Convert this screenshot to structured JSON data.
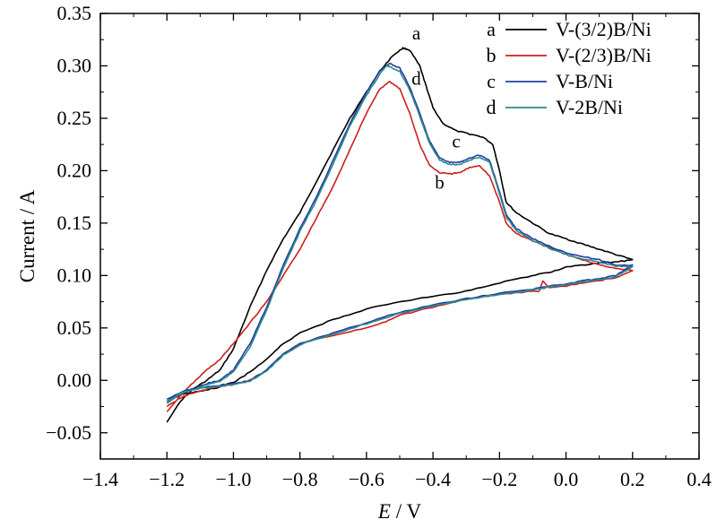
{
  "chart_data": {
    "type": "line",
    "title": "",
    "xlabel_var": "E",
    "xlabel_unit": " / V",
    "ylabel": "Current / A",
    "xlim": [
      -1.4,
      0.4
    ],
    "ylim": [
      -0.075,
      0.35
    ],
    "xticks": [
      -1.4,
      -1.2,
      -1.0,
      -0.8,
      -0.6,
      -0.4,
      -0.2,
      0.0,
      0.2,
      0.4
    ],
    "xtick_labels": [
      "−1.4",
      "−1.2",
      "−1.0",
      "−0.8",
      "−0.6",
      "−0.4",
      "−0.2",
      "0.0",
      "0.2",
      "0.4"
    ],
    "yticks": [
      -0.05,
      0.0,
      0.05,
      0.1,
      0.15,
      0.2,
      0.25,
      0.3,
      0.35
    ],
    "ytick_labels": [
      "−0.05",
      "0.00",
      "0.05",
      "0.10",
      "0.15",
      "0.20",
      "0.25",
      "0.30",
      "0.35"
    ],
    "grid": false,
    "legend_position": "top-right",
    "series": [
      {
        "letter": "a",
        "name": "V-(3/2)B/Ni",
        "color": "#000000",
        "forward": [
          [
            -1.2,
            -0.04
          ],
          [
            -1.16,
            -0.02
          ],
          [
            -1.12,
            -0.008
          ],
          [
            -1.08,
            0.0
          ],
          [
            -1.04,
            0.01
          ],
          [
            -1.0,
            0.03
          ],
          [
            -0.95,
            0.07
          ],
          [
            -0.9,
            0.105
          ],
          [
            -0.85,
            0.135
          ],
          [
            -0.8,
            0.16
          ],
          [
            -0.75,
            0.19
          ],
          [
            -0.7,
            0.22
          ],
          [
            -0.65,
            0.25
          ],
          [
            -0.6,
            0.275
          ],
          [
            -0.56,
            0.295
          ],
          [
            -0.52,
            0.31
          ],
          [
            -0.49,
            0.317
          ],
          [
            -0.47,
            0.315
          ],
          [
            -0.44,
            0.3
          ],
          [
            -0.42,
            0.28
          ],
          [
            -0.4,
            0.26
          ],
          [
            -0.37,
            0.245
          ],
          [
            -0.33,
            0.238
          ],
          [
            -0.29,
            0.235
          ],
          [
            -0.25,
            0.232
          ],
          [
            -0.22,
            0.225
          ],
          [
            -0.2,
            0.2
          ],
          [
            -0.18,
            0.17
          ],
          [
            -0.15,
            0.16
          ],
          [
            -0.1,
            0.15
          ],
          [
            -0.05,
            0.14
          ],
          [
            0.0,
            0.135
          ],
          [
            0.05,
            0.13
          ],
          [
            0.1,
            0.125
          ],
          [
            0.15,
            0.12
          ],
          [
            0.2,
            0.115
          ]
        ],
        "reverse": [
          [
            0.2,
            0.115
          ],
          [
            0.15,
            0.113
          ],
          [
            0.1,
            0.112
          ],
          [
            0.05,
            0.11
          ],
          [
            0.0,
            0.108
          ],
          [
            -0.05,
            0.103
          ],
          [
            -0.1,
            0.1
          ],
          [
            -0.2,
            0.093
          ],
          [
            -0.3,
            0.085
          ],
          [
            -0.4,
            0.08
          ],
          [
            -0.5,
            0.075
          ],
          [
            -0.6,
            0.068
          ],
          [
            -0.7,
            0.058
          ],
          [
            -0.8,
            0.045
          ],
          [
            -0.85,
            0.035
          ],
          [
            -0.9,
            0.02
          ],
          [
            -0.95,
            0.008
          ],
          [
            -1.0,
            -0.002
          ],
          [
            -1.05,
            -0.007
          ],
          [
            -1.1,
            -0.01
          ],
          [
            -1.15,
            -0.013
          ],
          [
            -1.2,
            -0.02
          ]
        ]
      },
      {
        "letter": "b",
        "name": "V-(2/3)B/Ni",
        "color": "#cc1f1f",
        "forward": [
          [
            -1.2,
            -0.03
          ],
          [
            -1.16,
            -0.015
          ],
          [
            -1.12,
            -0.002
          ],
          [
            -1.08,
            0.01
          ],
          [
            -1.04,
            0.02
          ],
          [
            -1.0,
            0.035
          ],
          [
            -0.95,
            0.055
          ],
          [
            -0.9,
            0.075
          ],
          [
            -0.85,
            0.1
          ],
          [
            -0.8,
            0.125
          ],
          [
            -0.75,
            0.155
          ],
          [
            -0.7,
            0.185
          ],
          [
            -0.65,
            0.22
          ],
          [
            -0.6,
            0.255
          ],
          [
            -0.56,
            0.278
          ],
          [
            -0.53,
            0.285
          ],
          [
            -0.5,
            0.278
          ],
          [
            -0.47,
            0.255
          ],
          [
            -0.44,
            0.225
          ],
          [
            -0.41,
            0.205
          ],
          [
            -0.38,
            0.198
          ],
          [
            -0.35,
            0.197
          ],
          [
            -0.32,
            0.198
          ],
          [
            -0.29,
            0.203
          ],
          [
            -0.26,
            0.205
          ],
          [
            -0.23,
            0.195
          ],
          [
            -0.2,
            0.17
          ],
          [
            -0.18,
            0.15
          ],
          [
            -0.15,
            0.14
          ],
          [
            -0.1,
            0.133
          ],
          [
            -0.05,
            0.127
          ],
          [
            0.0,
            0.12
          ],
          [
            0.05,
            0.115
          ],
          [
            0.1,
            0.11
          ],
          [
            0.15,
            0.107
          ],
          [
            0.2,
            0.105
          ]
        ],
        "reverse": [
          [
            0.2,
            0.105
          ],
          [
            0.15,
            0.098
          ],
          [
            0.1,
            0.095
          ],
          [
            0.05,
            0.093
          ],
          [
            0.0,
            0.09
          ],
          [
            -0.05,
            0.088
          ],
          [
            -0.07,
            0.095
          ],
          [
            -0.08,
            0.085
          ],
          [
            -0.1,
            0.085
          ],
          [
            -0.2,
            0.082
          ],
          [
            -0.3,
            0.077
          ],
          [
            -0.4,
            0.07
          ],
          [
            -0.5,
            0.062
          ],
          [
            -0.55,
            0.055
          ],
          [
            -0.6,
            0.05
          ],
          [
            -0.7,
            0.043
          ],
          [
            -0.8,
            0.035
          ],
          [
            -0.85,
            0.025
          ],
          [
            -0.9,
            0.01
          ],
          [
            -0.95,
            0.0
          ],
          [
            -1.0,
            -0.004
          ],
          [
            -1.05,
            -0.006
          ],
          [
            -1.1,
            -0.01
          ],
          [
            -1.15,
            -0.015
          ],
          [
            -1.2,
            -0.025
          ]
        ]
      },
      {
        "letter": "c",
        "name": "V-B/Ni",
        "color": "#1f3fa8",
        "forward": [
          [
            -1.2,
            -0.02
          ],
          [
            -1.16,
            -0.012
          ],
          [
            -1.12,
            -0.008
          ],
          [
            -1.08,
            -0.003
          ],
          [
            -1.04,
            0.0
          ],
          [
            -1.0,
            0.01
          ],
          [
            -0.95,
            0.035
          ],
          [
            -0.9,
            0.07
          ],
          [
            -0.85,
            0.11
          ],
          [
            -0.8,
            0.145
          ],
          [
            -0.75,
            0.175
          ],
          [
            -0.7,
            0.21
          ],
          [
            -0.65,
            0.245
          ],
          [
            -0.6,
            0.275
          ],
          [
            -0.56,
            0.295
          ],
          [
            -0.53,
            0.302
          ],
          [
            -0.5,
            0.298
          ],
          [
            -0.47,
            0.28
          ],
          [
            -0.44,
            0.255
          ],
          [
            -0.41,
            0.228
          ],
          [
            -0.38,
            0.212
          ],
          [
            -0.35,
            0.208
          ],
          [
            -0.32,
            0.208
          ],
          [
            -0.29,
            0.212
          ],
          [
            -0.26,
            0.215
          ],
          [
            -0.23,
            0.21
          ],
          [
            -0.2,
            0.18
          ],
          [
            -0.18,
            0.158
          ],
          [
            -0.15,
            0.145
          ],
          [
            -0.1,
            0.135
          ],
          [
            -0.05,
            0.128
          ],
          [
            0.0,
            0.122
          ],
          [
            0.05,
            0.118
          ],
          [
            0.1,
            0.115
          ],
          [
            0.15,
            0.11
          ],
          [
            0.2,
            0.11
          ]
        ],
        "reverse": [
          [
            0.2,
            0.11
          ],
          [
            0.15,
            0.1
          ],
          [
            0.1,
            0.097
          ],
          [
            0.05,
            0.095
          ],
          [
            0.0,
            0.092
          ],
          [
            -0.05,
            0.09
          ],
          [
            -0.1,
            0.087
          ],
          [
            -0.2,
            0.083
          ],
          [
            -0.3,
            0.078
          ],
          [
            -0.4,
            0.072
          ],
          [
            -0.5,
            0.065
          ],
          [
            -0.6,
            0.055
          ],
          [
            -0.7,
            0.045
          ],
          [
            -0.8,
            0.035
          ],
          [
            -0.85,
            0.025
          ],
          [
            -0.9,
            0.01
          ],
          [
            -0.95,
            0.0
          ],
          [
            -1.0,
            -0.003
          ],
          [
            -1.05,
            -0.005
          ],
          [
            -1.1,
            -0.007
          ],
          [
            -1.15,
            -0.01
          ],
          [
            -1.2,
            -0.018
          ]
        ]
      },
      {
        "letter": "d",
        "name": "V-2B/Ni",
        "color": "#2e8a8a",
        "forward": [
          [
            -1.2,
            -0.022
          ],
          [
            -1.16,
            -0.013
          ],
          [
            -1.12,
            -0.009
          ],
          [
            -1.08,
            -0.004
          ],
          [
            -1.04,
            -0.001
          ],
          [
            -1.0,
            0.008
          ],
          [
            -0.95,
            0.032
          ],
          [
            -0.9,
            0.067
          ],
          [
            -0.85,
            0.107
          ],
          [
            -0.8,
            0.142
          ],
          [
            -0.75,
            0.172
          ],
          [
            -0.7,
            0.207
          ],
          [
            -0.65,
            0.242
          ],
          [
            -0.6,
            0.272
          ],
          [
            -0.56,
            0.292
          ],
          [
            -0.54,
            0.3
          ],
          [
            -0.53,
            0.299
          ],
          [
            -0.5,
            0.295
          ],
          [
            -0.47,
            0.277
          ],
          [
            -0.44,
            0.252
          ],
          [
            -0.41,
            0.226
          ],
          [
            -0.38,
            0.21
          ],
          [
            -0.35,
            0.206
          ],
          [
            -0.32,
            0.206
          ],
          [
            -0.29,
            0.21
          ],
          [
            -0.26,
            0.213
          ],
          [
            -0.23,
            0.208
          ],
          [
            -0.2,
            0.178
          ],
          [
            -0.18,
            0.156
          ],
          [
            -0.15,
            0.143
          ],
          [
            -0.1,
            0.133
          ],
          [
            -0.05,
            0.126
          ],
          [
            0.0,
            0.12
          ],
          [
            0.05,
            0.116
          ],
          [
            0.1,
            0.113
          ],
          [
            0.15,
            0.109
          ],
          [
            0.2,
            0.108
          ]
        ],
        "reverse": [
          [
            0.2,
            0.108
          ],
          [
            0.15,
            0.099
          ],
          [
            0.1,
            0.096
          ],
          [
            0.05,
            0.094
          ],
          [
            0.0,
            0.091
          ],
          [
            -0.05,
            0.089
          ],
          [
            -0.1,
            0.086
          ],
          [
            -0.2,
            0.082
          ],
          [
            -0.3,
            0.077
          ],
          [
            -0.4,
            0.071
          ],
          [
            -0.5,
            0.064
          ],
          [
            -0.6,
            0.054
          ],
          [
            -0.7,
            0.044
          ],
          [
            -0.8,
            0.034
          ],
          [
            -0.85,
            0.024
          ],
          [
            -0.9,
            0.009
          ],
          [
            -0.95,
            -0.001
          ],
          [
            -1.0,
            -0.004
          ],
          [
            -1.05,
            -0.006
          ],
          [
            -1.1,
            -0.008
          ],
          [
            -1.15,
            -0.011
          ],
          [
            -1.2,
            -0.02
          ]
        ]
      }
    ],
    "curve_annotations": [
      {
        "text": "a",
        "x": -0.45,
        "y": 0.325
      },
      {
        "text": "d",
        "x": -0.45,
        "y": 0.282
      },
      {
        "text": "c",
        "x": -0.33,
        "y": 0.222
      },
      {
        "text": "b",
        "x": -0.38,
        "y": 0.183
      }
    ]
  }
}
